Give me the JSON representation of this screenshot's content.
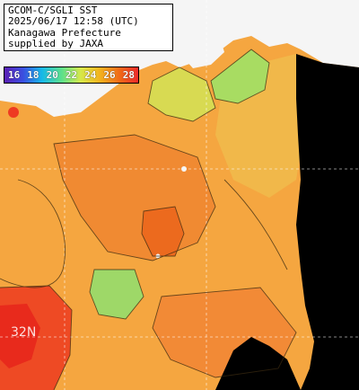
{
  "header": {
    "line1": "GCOM-C/SGLI SST",
    "line2": "2025/06/17 12:58 (UTC)",
    "line3": "Kanagawa Prefecture",
    "line4": "supplied by JAXA"
  },
  "legend": {
    "values": [
      "16",
      "18",
      "20",
      "22",
      "24",
      "26",
      "28"
    ],
    "unit": ""
  },
  "grid": {
    "lat_top": "",
    "lat_mid": "32N",
    "lon_mid": "",
    "lon_right": ""
  },
  "colors": {
    "land": "#f5f5f5",
    "nodata": "#000000",
    "warm": "#f07a22",
    "mid": "#f5a640",
    "cool": "#c8d648",
    "cold": "#8fd86a",
    "hot": "#ee2b1f"
  }
}
